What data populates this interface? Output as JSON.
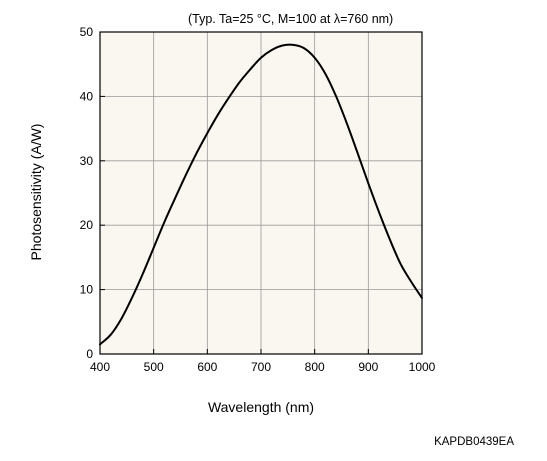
{
  "chart_data": {
    "type": "line",
    "annotation": "(Typ. Ta=25 °C, M=100 at λ=760 nm)",
    "xlabel": "Wavelength (nm)",
    "ylabel": "Photosensitivity (A/W)",
    "xlim": [
      400,
      1000
    ],
    "ylim": [
      0,
      50
    ],
    "x_ticks": [
      400,
      500,
      600,
      700,
      800,
      900,
      1000
    ],
    "y_ticks": [
      0,
      10,
      20,
      30,
      40,
      50
    ],
    "grid": true,
    "series": [
      {
        "x": [
          400,
          420,
          440,
          460,
          480,
          500,
          520,
          540,
          560,
          580,
          600,
          620,
          640,
          660,
          680,
          700,
          720,
          740,
          760,
          780,
          800,
          820,
          840,
          860,
          880,
          900,
          920,
          940,
          960,
          980,
          1000
        ],
        "y": [
          1.5,
          3,
          5.5,
          8.8,
          12.5,
          16.5,
          20.5,
          24.2,
          27.8,
          31.2,
          34.3,
          37.2,
          39.8,
          42.2,
          44.2,
          46,
          47.2,
          47.9,
          48,
          47.5,
          46,
          43.5,
          40,
          35.8,
          31.2,
          26.5,
          22,
          17.8,
          14,
          11.2,
          8.7
        ]
      }
    ]
  },
  "doc_code": "KAPDB0439EA",
  "colors": {
    "frame": "#000000",
    "grid": "#9a9a9a",
    "plot_background": "#faf7f1",
    "curve": "#000000"
  }
}
